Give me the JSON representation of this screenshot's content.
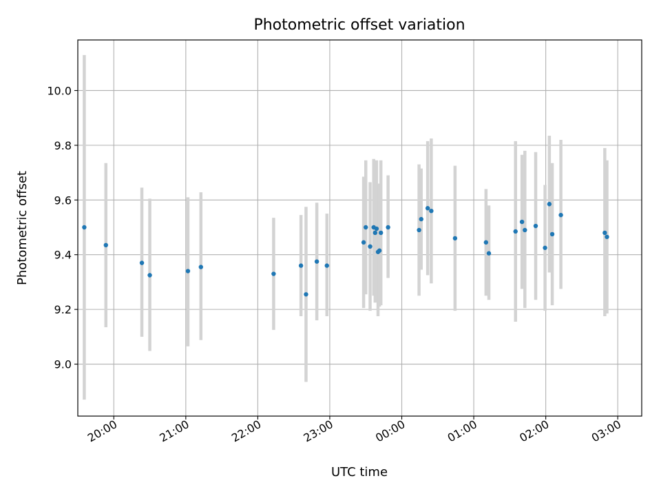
{
  "chart_data": {
    "type": "scatter",
    "title": "Photometric offset variation",
    "xlabel": "UTC time",
    "ylabel": "Photometric offset",
    "x_unit": "hours since 00:00 UTC (negative = previous evening)",
    "xlim": [
      -4.5,
      3.333
    ],
    "ylim": [
      8.81,
      10.185
    ],
    "xticks": [
      {
        "value": -4,
        "label": "20:00"
      },
      {
        "value": -3,
        "label": "21:00"
      },
      {
        "value": -2,
        "label": "22:00"
      },
      {
        "value": -1,
        "label": "23:00"
      },
      {
        "value": 0,
        "label": "00:00"
      },
      {
        "value": 1,
        "label": "01:00"
      },
      {
        "value": 2,
        "label": "02:00"
      },
      {
        "value": 3,
        "label": "03:00"
      }
    ],
    "yticks": [
      {
        "value": 9.0,
        "label": "9.0"
      },
      {
        "value": 9.2,
        "label": "9.2"
      },
      {
        "value": 9.4,
        "label": "9.4"
      },
      {
        "value": 9.6,
        "label": "9.6"
      },
      {
        "value": 9.8,
        "label": "9.8"
      },
      {
        "value": 10.0,
        "label": "10.0"
      }
    ],
    "grid": true,
    "colors": {
      "point": "#1f77b4",
      "errorbar": "#d3d3d3",
      "grid": "#b0b0b0"
    },
    "points": [
      {
        "x": -4.41,
        "y": 9.5,
        "low": 8.87,
        "high": 10.13
      },
      {
        "x": -4.11,
        "y": 9.435,
        "low": 9.135,
        "high": 9.735
      },
      {
        "x": -3.61,
        "y": 9.37,
        "low": 9.1,
        "high": 9.645
      },
      {
        "x": -3.5,
        "y": 9.325,
        "low": 9.048,
        "high": 9.605
      },
      {
        "x": -2.97,
        "y": 9.34,
        "low": 9.065,
        "high": 9.61
      },
      {
        "x": -2.79,
        "y": 9.355,
        "low": 9.088,
        "high": 9.628
      },
      {
        "x": -1.78,
        "y": 9.33,
        "low": 9.125,
        "high": 9.535
      },
      {
        "x": -1.4,
        "y": 9.36,
        "low": 9.175,
        "high": 9.545
      },
      {
        "x": -1.33,
        "y": 9.255,
        "low": 8.935,
        "high": 9.575
      },
      {
        "x": -1.18,
        "y": 9.375,
        "low": 9.16,
        "high": 9.59
      },
      {
        "x": -1.04,
        "y": 9.36,
        "low": 9.175,
        "high": 9.55
      },
      {
        "x": -0.53,
        "y": 9.445,
        "low": 9.205,
        "high": 9.685
      },
      {
        "x": -0.5,
        "y": 9.5,
        "low": 9.255,
        "high": 9.745
      },
      {
        "x": -0.44,
        "y": 9.43,
        "low": 9.195,
        "high": 9.665
      },
      {
        "x": -0.39,
        "y": 9.5,
        "low": 9.25,
        "high": 9.75
      },
      {
        "x": -0.37,
        "y": 9.48,
        "low": 9.225,
        "high": 9.735
      },
      {
        "x": -0.35,
        "y": 9.495,
        "low": 9.245,
        "high": 9.745
      },
      {
        "x": -0.33,
        "y": 9.41,
        "low": 9.175,
        "high": 9.655
      },
      {
        "x": -0.31,
        "y": 9.415,
        "low": 9.21,
        "high": 9.66
      },
      {
        "x": -0.29,
        "y": 9.48,
        "low": 9.215,
        "high": 9.745
      },
      {
        "x": -0.19,
        "y": 9.5,
        "low": 9.315,
        "high": 9.69
      },
      {
        "x": 0.24,
        "y": 9.49,
        "low": 9.25,
        "high": 9.73
      },
      {
        "x": 0.27,
        "y": 9.53,
        "low": 9.345,
        "high": 9.715
      },
      {
        "x": 0.36,
        "y": 9.57,
        "low": 9.325,
        "high": 9.815
      },
      {
        "x": 0.41,
        "y": 9.56,
        "low": 9.295,
        "high": 9.825
      },
      {
        "x": 0.74,
        "y": 9.46,
        "low": 9.195,
        "high": 9.725
      },
      {
        "x": 1.17,
        "y": 9.445,
        "low": 9.25,
        "high": 9.64
      },
      {
        "x": 1.21,
        "y": 9.405,
        "low": 9.235,
        "high": 9.58
      },
      {
        "x": 1.58,
        "y": 9.485,
        "low": 9.155,
        "high": 9.815
      },
      {
        "x": 1.67,
        "y": 9.52,
        "low": 9.275,
        "high": 9.765
      },
      {
        "x": 1.71,
        "y": 9.49,
        "low": 9.205,
        "high": 9.78
      },
      {
        "x": 1.86,
        "y": 9.505,
        "low": 9.235,
        "high": 9.775
      },
      {
        "x": 1.99,
        "y": 9.425,
        "low": 9.195,
        "high": 9.655
      },
      {
        "x": 2.05,
        "y": 9.585,
        "low": 9.335,
        "high": 9.835
      },
      {
        "x": 2.09,
        "y": 9.475,
        "low": 9.215,
        "high": 9.735
      },
      {
        "x": 2.21,
        "y": 9.545,
        "low": 9.275,
        "high": 9.82
      },
      {
        "x": 2.82,
        "y": 9.48,
        "low": 9.175,
        "high": 9.79
      },
      {
        "x": 2.85,
        "y": 9.465,
        "low": 9.185,
        "high": 9.745
      }
    ]
  }
}
